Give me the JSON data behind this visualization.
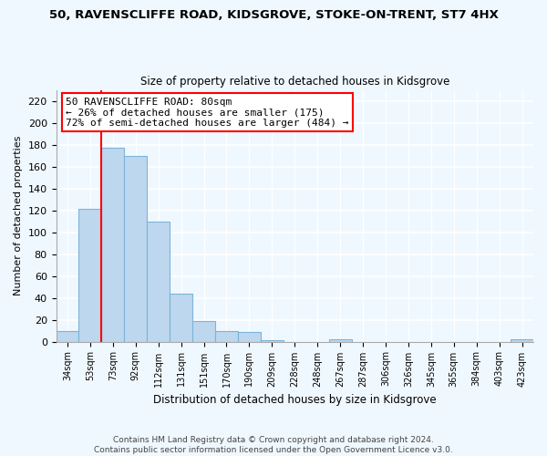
{
  "title_line1": "50, RAVENSCLIFFE ROAD, KIDSGROVE, STOKE-ON-TRENT, ST7 4HX",
  "title_line2": "Size of property relative to detached houses in Kidsgrove",
  "xlabel": "Distribution of detached houses by size in Kidsgrove",
  "ylabel": "Number of detached properties",
  "bar_labels": [
    "34sqm",
    "53sqm",
    "73sqm",
    "92sqm",
    "112sqm",
    "131sqm",
    "151sqm",
    "170sqm",
    "190sqm",
    "209sqm",
    "228sqm",
    "248sqm",
    "267sqm",
    "287sqm",
    "306sqm",
    "326sqm",
    "345sqm",
    "365sqm",
    "384sqm",
    "403sqm",
    "423sqm"
  ],
  "bar_values": [
    10,
    121,
    177,
    170,
    110,
    44,
    19,
    10,
    9,
    1,
    0,
    0,
    2,
    0,
    0,
    0,
    0,
    0,
    0,
    0,
    2
  ],
  "bar_color": "#bdd7ee",
  "bar_edge_color": "#7db3d8",
  "vline_x": 1.5,
  "vline_color": "red",
  "annotation_title": "50 RAVENSCLIFFE ROAD: 80sqm",
  "annotation_line2": "← 26% of detached houses are smaller (175)",
  "annotation_line3": "72% of semi-detached houses are larger (484) →",
  "annotation_box_color": "white",
  "annotation_box_edge": "red",
  "ylim": [
    0,
    230
  ],
  "yticks": [
    0,
    20,
    40,
    60,
    80,
    100,
    120,
    140,
    160,
    180,
    200,
    220
  ],
  "footer_line1": "Contains HM Land Registry data © Crown copyright and database right 2024.",
  "footer_line2": "Contains public sector information licensed under the Open Government Licence v3.0.",
  "background_color": "#f0f8ff"
}
